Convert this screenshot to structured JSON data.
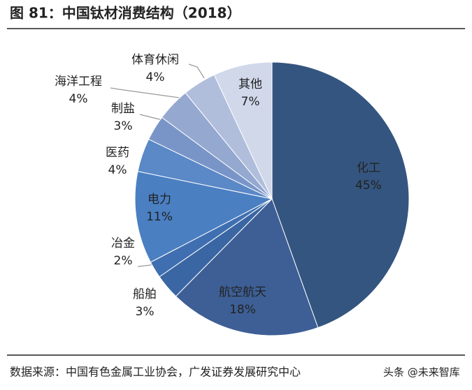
{
  "chart_data": {
    "type": "pie",
    "title": "图 81：中国钛材消费结构（2018）",
    "source": "数据来源：中国有色金属工业协会，广发证券发展研究中心",
    "watermark": "头条 @未来智库",
    "categories": [
      "化工",
      "航空航天",
      "船舶",
      "冶金",
      "电力",
      "医药",
      "制盐",
      "海洋工程",
      "体育休闲",
      "其他"
    ],
    "values": [
      45,
      18,
      3,
      2,
      11,
      4,
      3,
      4,
      4,
      7
    ],
    "value_labels": [
      "45%",
      "18%",
      "3%",
      "2%",
      "11%",
      "4%",
      "3%",
      "4%",
      "4%",
      "7%"
    ],
    "colors": [
      "#34557f",
      "#3d5f95",
      "#3a66a3",
      "#3f6fb0",
      "#4a7fc2",
      "#5b88c6",
      "#7995c8",
      "#94a8d0",
      "#b0bedc",
      "#d0d8ea"
    ]
  }
}
